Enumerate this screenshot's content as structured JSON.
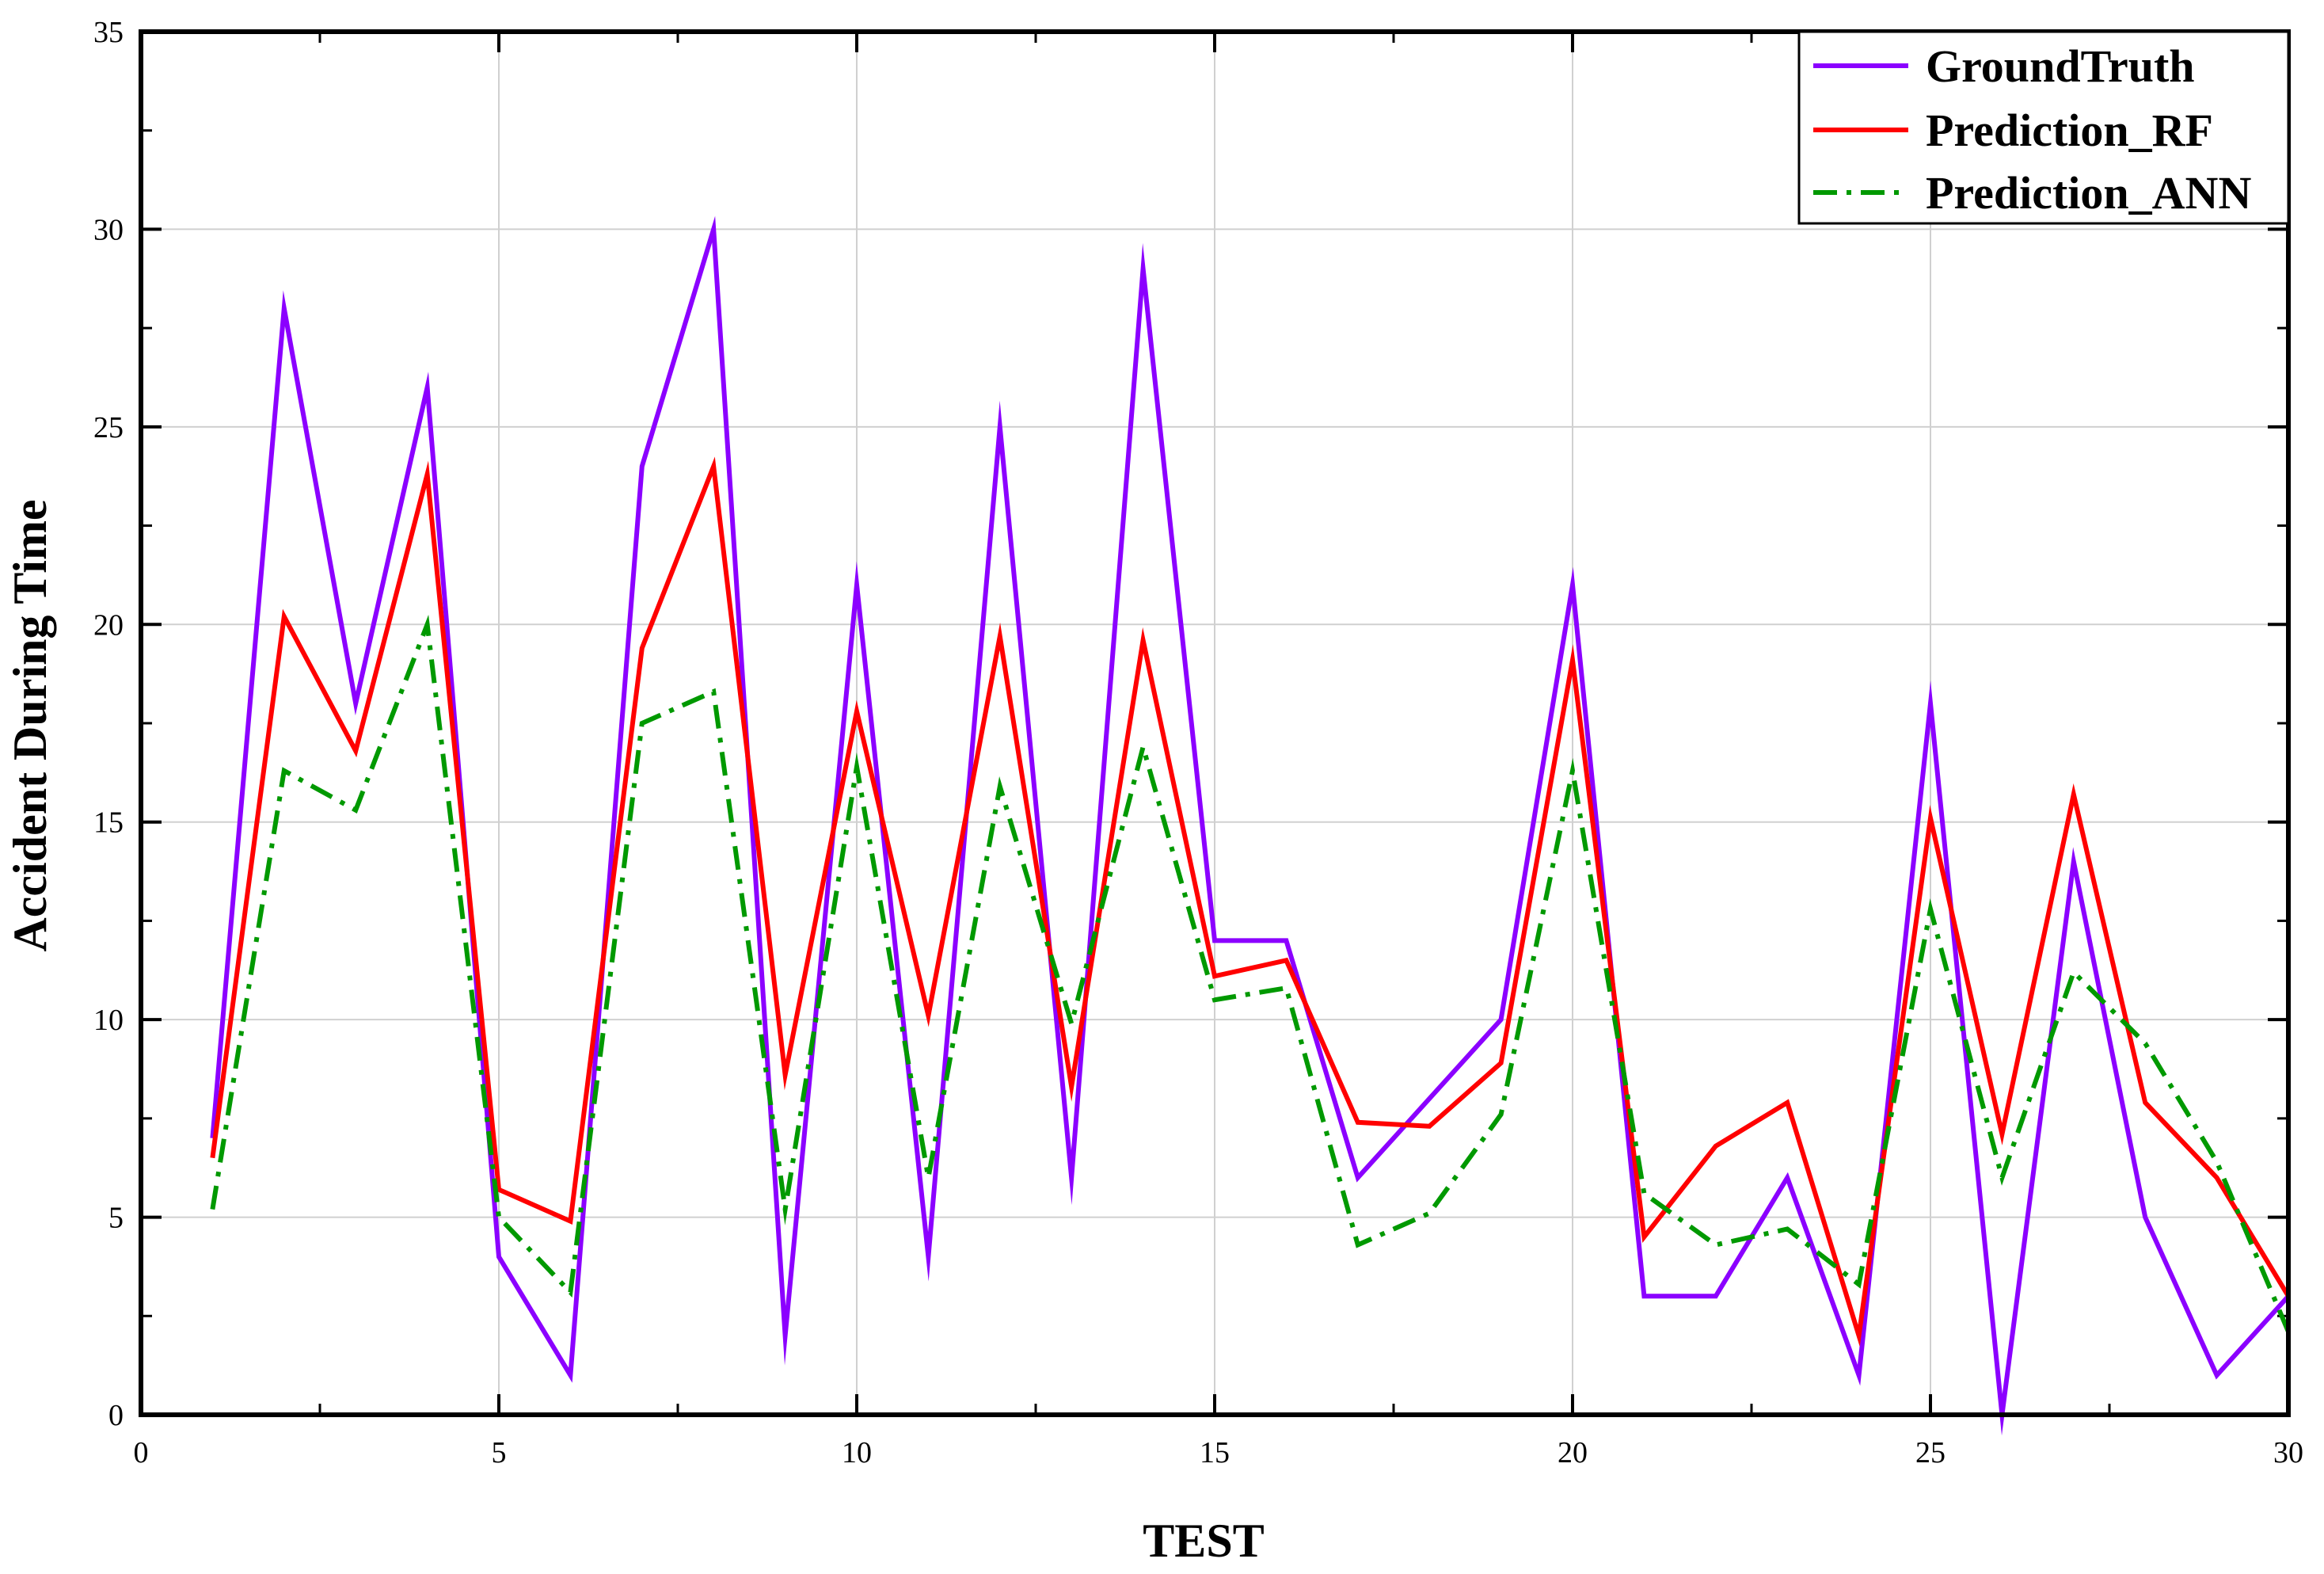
{
  "chart_data": {
    "type": "line",
    "title": "",
    "xlabel": "TEST",
    "ylabel": "Accident During Time",
    "xlim": [
      0,
      30
    ],
    "ylim": [
      0,
      35
    ],
    "xticks": [
      0,
      5,
      10,
      15,
      20,
      25,
      30
    ],
    "yticks": [
      0,
      5,
      10,
      15,
      20,
      25,
      30,
      35
    ],
    "grid": true,
    "legend_position": "top-right",
    "x": [
      1,
      2,
      3,
      4,
      5,
      6,
      7,
      8,
      9,
      10,
      11,
      12,
      13,
      14,
      15,
      16,
      17,
      18,
      19,
      20,
      21,
      22,
      23,
      24,
      25,
      26,
      27,
      28,
      29,
      30
    ],
    "series": [
      {
        "name": "GroundTruth",
        "color": "#8b00ff",
        "style": "solid",
        "values": [
          7,
          28,
          18,
          26,
          4,
          1,
          24,
          30,
          2,
          21,
          4,
          25,
          6,
          29,
          12,
          12,
          6,
          8,
          10,
          21,
          3,
          3,
          6,
          1,
          18,
          0,
          14,
          5,
          1,
          3
        ]
      },
      {
        "name": "Prediction_RF",
        "color": "#ff0000",
        "style": "solid",
        "values": [
          6.5,
          20.2,
          16.8,
          23.8,
          5.7,
          4.9,
          19.4,
          24,
          8.6,
          17.8,
          10.1,
          19.7,
          8.3,
          19.6,
          11.1,
          11.5,
          7.4,
          7.3,
          8.9,
          19.1,
          4.5,
          6.8,
          7.9,
          2,
          15.1,
          7.1,
          15.7,
          7.9,
          6,
          3
        ]
      },
      {
        "name": "Prediction_ANN",
        "color": "#009900",
        "style": "dashdot",
        "values": [
          5.2,
          16.3,
          15.3,
          20,
          5,
          3.1,
          17.5,
          18.3,
          5.2,
          16.4,
          6,
          15.9,
          9.9,
          16.9,
          10.5,
          10.8,
          4.3,
          5.1,
          7.6,
          16.3,
          5.6,
          4.3,
          4.7,
          3.3,
          12.8,
          6,
          11.2,
          9.4,
          6.4,
          2.1
        ]
      }
    ]
  }
}
